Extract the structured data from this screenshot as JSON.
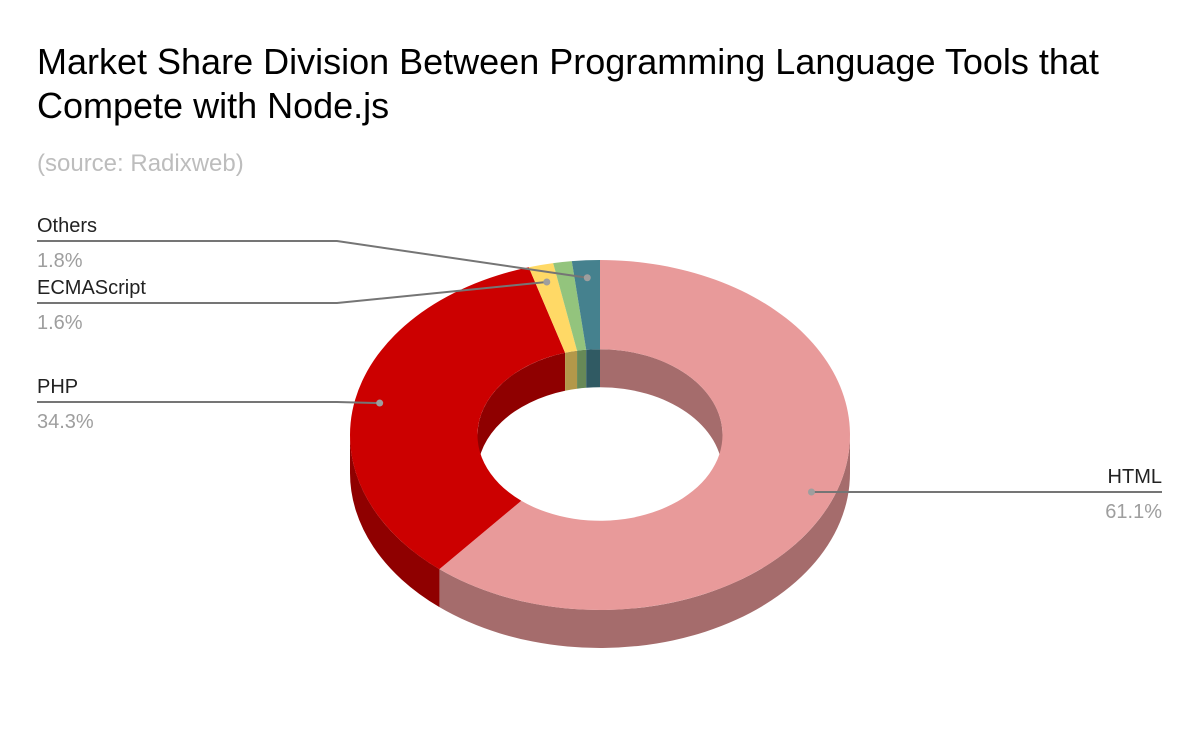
{
  "chart_data": {
    "type": "pie",
    "variant": "3d-donut",
    "title": "Market Share Division Between Programming Language Tools that Compete with Node.js",
    "subtitle": "(source: Radixweb)",
    "slices": [
      {
        "label": "HTML",
        "value": 61.1,
        "display": "61.1%",
        "color": "#e89a9a",
        "side_color": "#a56c6c"
      },
      {
        "label": "PHP",
        "value": 34.3,
        "display": "34.3%",
        "color": "#cc0000",
        "side_color": "#8f0000"
      },
      {
        "label": "ECMAScript",
        "value": 1.6,
        "display": "1.6%",
        "color": "#ffd966",
        "side_color": "#b3984a"
      },
      {
        "label": "",
        "value": 1.2,
        "display": "",
        "color": "#93c47d",
        "side_color": "#678957"
      },
      {
        "label": "Others",
        "value": 1.8,
        "display": "1.8%",
        "color": "#45818e",
        "side_color": "#305a63"
      }
    ],
    "legend": "none",
    "labels": "outside-with-leader-lines"
  }
}
